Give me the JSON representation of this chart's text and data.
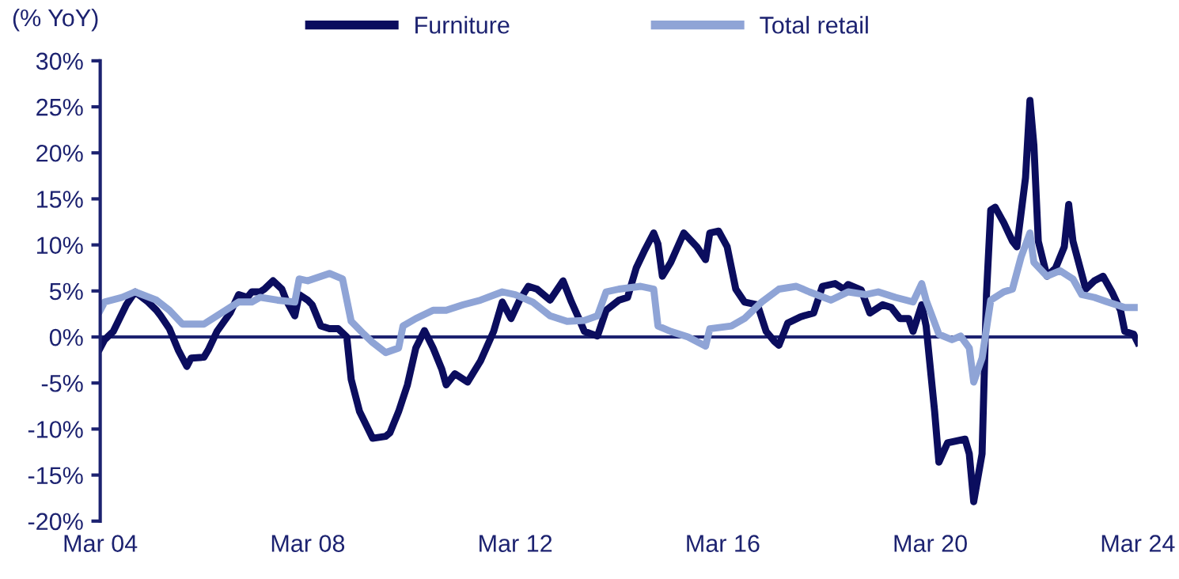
{
  "chart_data": {
    "type": "line",
    "ylabel": "(% YoY)",
    "legend": "top",
    "grid": false,
    "marker": "none",
    "line_style": "solid",
    "xlim": [
      "2004-03",
      "2024-03"
    ],
    "xticks": [
      {
        "value": "2004-03",
        "label": "Mar 04"
      },
      {
        "value": "2008-03",
        "label": "Mar 08"
      },
      {
        "value": "2012-03",
        "label": "Mar 12"
      },
      {
        "value": "2016-03",
        "label": "Mar 16"
      },
      {
        "value": "2020-03",
        "label": "Mar 20"
      },
      {
        "value": "2024-03",
        "label": "Mar 24"
      }
    ],
    "ylim": [
      -20,
      30
    ],
    "yticks": [
      {
        "value": -20,
        "label": "-20%"
      },
      {
        "value": -15,
        "label": "-15%"
      },
      {
        "value": -10,
        "label": "-10%"
      },
      {
        "value": -5,
        "label": "-5%"
      },
      {
        "value": 0,
        "label": "0%"
      },
      {
        "value": 5,
        "label": "5%"
      },
      {
        "value": 10,
        "label": "10%"
      },
      {
        "value": 15,
        "label": "15%"
      },
      {
        "value": 20,
        "label": "20%"
      },
      {
        "value": 25,
        "label": "25%"
      },
      {
        "value": 30,
        "label": "30%"
      }
    ],
    "ref_lines": [
      {
        "axis": "y",
        "value": 0,
        "color": "#1c2270"
      }
    ],
    "series": [
      {
        "name": "Furniture",
        "color": "#0b0d5e",
        "x": [
          "2004-03",
          "2004-04",
          "2004-06",
          "2004-09",
          "2004-11",
          "2005-02",
          "2005-04",
          "2005-05",
          "2005-07",
          "2005-09",
          "2005-11",
          "2005-12",
          "2006-03",
          "2006-04",
          "2006-06",
          "2006-09",
          "2006-11",
          "2007-01",
          "2007-02",
          "2007-04",
          "2007-05",
          "2007-07",
          "2007-09",
          "2007-10",
          "2007-12",
          "2008-01",
          "2008-03",
          "2008-04",
          "2008-06",
          "2008-08",
          "2008-10",
          "2008-12",
          "2009-01",
          "2009-03",
          "2009-06",
          "2009-09",
          "2009-10",
          "2009-12",
          "2010-02",
          "2010-04",
          "2010-06",
          "2010-08",
          "2010-10",
          "2010-11",
          "2011-01",
          "2011-04",
          "2011-07",
          "2011-10",
          "2011-12",
          "2012-02",
          "2012-04",
          "2012-06",
          "2012-08",
          "2012-11",
          "2013-02",
          "2013-04",
          "2013-06",
          "2013-07",
          "2013-10",
          "2013-12",
          "2014-03",
          "2014-05",
          "2014-07",
          "2014-09",
          "2014-11",
          "2014-12",
          "2015-01",
          "2015-03",
          "2015-06",
          "2015-09",
          "2015-11",
          "2015-12",
          "2016-02",
          "2016-04",
          "2016-06",
          "2016-08",
          "2016-11",
          "2017-01",
          "2017-03",
          "2017-04",
          "2017-06",
          "2017-09",
          "2017-12",
          "2018-02",
          "2018-05",
          "2018-07",
          "2018-08",
          "2018-11",
          "2019-01",
          "2019-04",
          "2019-06",
          "2019-08",
          "2019-10",
          "2019-11",
          "2020-01",
          "2020-02",
          "2020-04",
          "2020-05",
          "2020-07",
          "2020-11",
          "2020-12",
          "2021-01",
          "2021-03",
          "2021-04",
          "2021-05",
          "2021-06",
          "2021-08",
          "2021-10",
          "2021-11",
          "2022-01",
          "2022-02",
          "2022-03",
          "2022-04",
          "2022-06",
          "2022-08",
          "2022-10",
          "2022-11",
          "2022-12",
          "2023-03",
          "2023-05",
          "2023-07",
          "2023-09",
          "2023-11",
          "2023-12",
          "2024-02",
          "2024-03"
        ],
        "values": [
          -1.2,
          -0.3,
          0.6,
          3.5,
          4.9,
          3.8,
          2.9,
          2.3,
          0.9,
          -1.4,
          -3.2,
          -2.3,
          -2.2,
          -1.4,
          0.6,
          2.6,
          4.6,
          4.3,
          4.9,
          4.9,
          5.2,
          6.1,
          5.2,
          4.0,
          2.3,
          4.6,
          4.0,
          3.5,
          1.2,
          0.9,
          0.9,
          0.0,
          -4.6,
          -8.1,
          -11.0,
          -10.8,
          -10.4,
          -8.1,
          -5.2,
          -1.2,
          0.7,
          -1.2,
          -3.5,
          -5.2,
          -4.0,
          -4.9,
          -2.6,
          0.6,
          3.8,
          2.0,
          4.0,
          5.5,
          5.2,
          4.0,
          6.1,
          3.8,
          1.7,
          0.6,
          0.1,
          2.9,
          4.0,
          4.3,
          7.5,
          9.5,
          11.3,
          10.1,
          6.6,
          8.1,
          11.3,
          9.8,
          8.4,
          11.3,
          11.5,
          9.8,
          5.2,
          3.8,
          3.5,
          0.6,
          -0.5,
          -0.9,
          1.5,
          2.2,
          2.6,
          5.5,
          5.8,
          5.2,
          5.7,
          5.1,
          2.6,
          3.5,
          3.2,
          2.0,
          2.0,
          0.6,
          3.5,
          1.2,
          -8.1,
          -13.6,
          -11.5,
          -11.1,
          -12.7,
          -17.9,
          -12.7,
          4.6,
          13.8,
          14.1,
          12.4,
          10.4,
          9.8,
          17.3,
          25.7,
          20.8,
          10.4,
          6.6,
          7.5,
          9.8,
          14.4,
          10.4,
          5.2,
          6.1,
          6.6,
          4.9,
          2.9,
          0.6,
          0.3,
          -0.6
        ]
      },
      {
        "name": "Total retail",
        "color": "#8fa4d6",
        "x": [
          "2004-03",
          "2004-04",
          "2004-08",
          "2004-11",
          "2005-04",
          "2005-07",
          "2005-10",
          "2006-03",
          "2006-06",
          "2006-11",
          "2007-02",
          "2007-04",
          "2007-08",
          "2007-12",
          "2008-01",
          "2008-03",
          "2008-08",
          "2008-11",
          "2009-01",
          "2009-04",
          "2009-06",
          "2009-09",
          "2009-12",
          "2010-01",
          "2010-04",
          "2010-08",
          "2010-11",
          "2011-03",
          "2011-07",
          "2011-12",
          "2012-03",
          "2012-07",
          "2012-11",
          "2013-03",
          "2013-07",
          "2013-10",
          "2013-12",
          "2014-03",
          "2014-08",
          "2014-11",
          "2014-12",
          "2015-03",
          "2015-07",
          "2015-11",
          "2015-12",
          "2016-05",
          "2016-08",
          "2016-12",
          "2017-04",
          "2017-08",
          "2017-11",
          "2018-04",
          "2018-08",
          "2018-12",
          "2019-03",
          "2019-07",
          "2019-11",
          "2020-01",
          "2020-02",
          "2020-05",
          "2020-08",
          "2020-10",
          "2020-12",
          "2021-01",
          "2021-03",
          "2021-05",
          "2021-08",
          "2021-10",
          "2021-12",
          "2022-02",
          "2022-03",
          "2022-06",
          "2022-09",
          "2022-12",
          "2023-02",
          "2023-05",
          "2023-08",
          "2023-12",
          "2024-03"
        ],
        "values": [
          2.9,
          3.8,
          4.3,
          4.9,
          4.0,
          2.9,
          1.4,
          1.4,
          2.3,
          3.8,
          3.8,
          4.3,
          4.0,
          3.8,
          6.3,
          6.1,
          6.9,
          6.3,
          1.7,
          0.3,
          -0.6,
          -1.7,
          -1.2,
          1.2,
          2.0,
          2.9,
          2.9,
          3.5,
          4.0,
          4.9,
          4.6,
          3.8,
          2.3,
          1.7,
          1.8,
          2.3,
          4.9,
          5.2,
          5.5,
          5.2,
          1.2,
          0.6,
          0.0,
          -1.0,
          0.9,
          1.2,
          2.0,
          3.8,
          5.2,
          5.5,
          4.9,
          4.0,
          4.9,
          4.6,
          4.9,
          4.3,
          3.8,
          5.8,
          4.0,
          0.3,
          -0.3,
          0.1,
          -1.2,
          -4.9,
          -2.3,
          4.0,
          4.9,
          5.2,
          8.7,
          11.3,
          8.1,
          6.6,
          7.2,
          6.3,
          4.6,
          4.3,
          3.8,
          3.2,
          3.2
        ]
      }
    ]
  }
}
